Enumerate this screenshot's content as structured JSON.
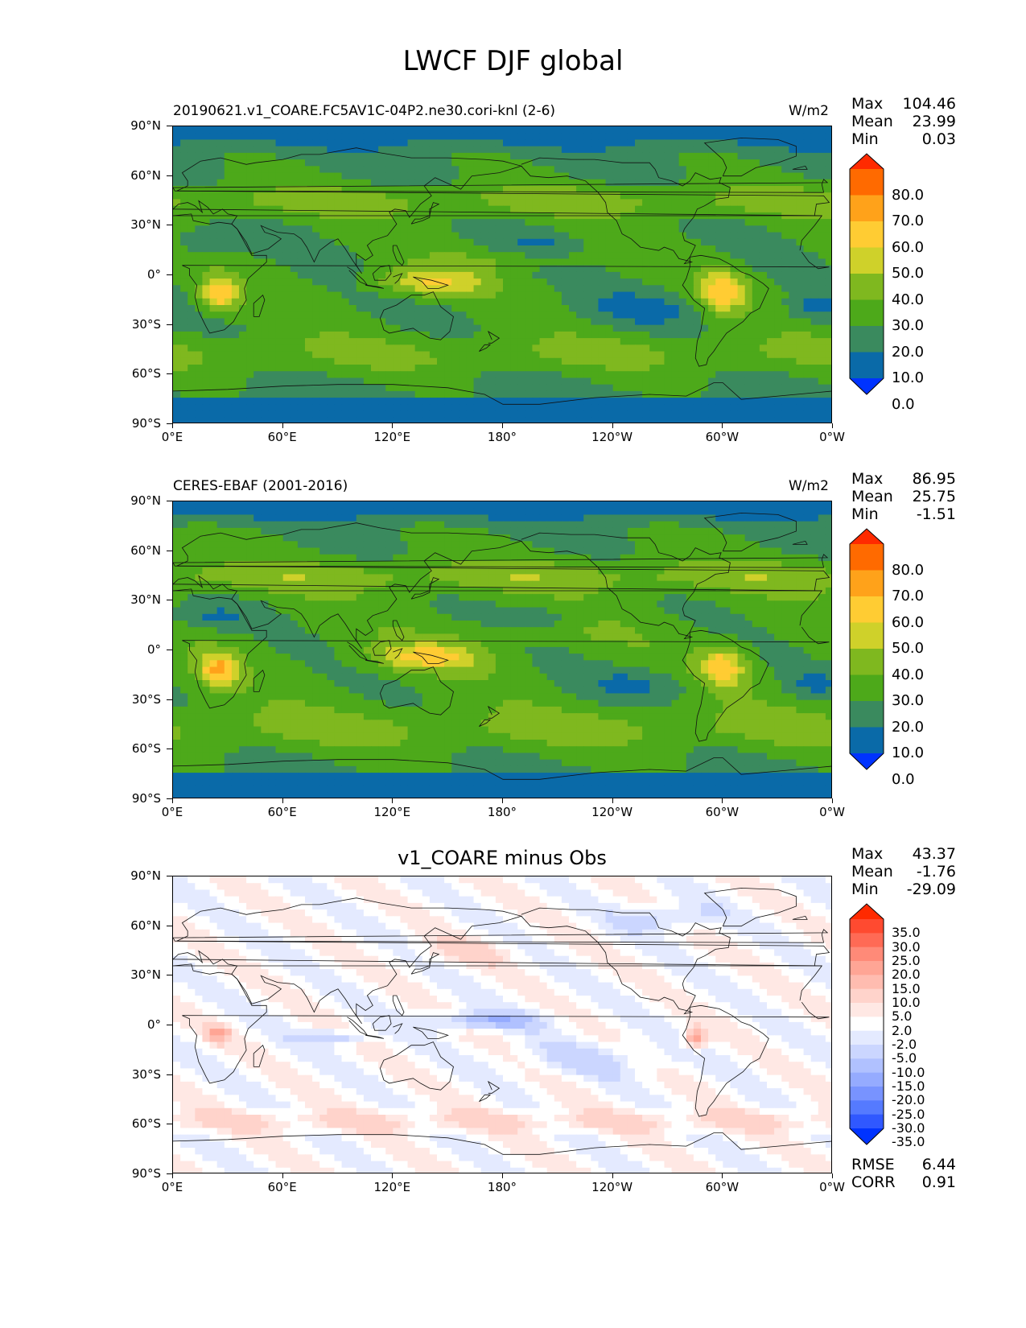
{
  "figure_title": "LWCF DJF global",
  "chart_data": [
    {
      "type": "heatmap",
      "title_left": "20190621.v1_COARE.FC5AV1C-04P2.ne30.cori-knl (2-6)",
      "title_right": "W/m2",
      "stats": {
        "max_label": "Max",
        "max": "104.46",
        "mean_label": "Mean",
        "mean": "23.99",
        "min_label": "Min",
        "min": "0.03"
      },
      "colorbar_levels": [
        "80.0",
        "70.0",
        "60.0",
        "50.0",
        "40.0",
        "30.0",
        "20.0",
        "10.0",
        "0.0"
      ],
      "colorbar_colors": [
        "#ff2a00",
        "#ff6a00",
        "#ffa21a",
        "#ffcc33",
        "#cfd12a",
        "#7fb81f",
        "#4da91a",
        "#3a8a5e",
        "#0a6aa8",
        "#0033ff"
      ],
      "xticks": [
        "0°E",
        "60°E",
        "120°E",
        "180°",
        "120°W",
        "60°W",
        "0°W"
      ],
      "yticks": [
        "90°N",
        "60°N",
        "30°N",
        "0°",
        "30°S",
        "60°S",
        "90°S"
      ]
    },
    {
      "type": "heatmap",
      "title_left": "CERES-EBAF (2001-2016)",
      "title_right": "W/m2",
      "stats": {
        "max_label": "Max",
        "max": "86.95",
        "mean_label": "Mean",
        "mean": "25.75",
        "min_label": "Min",
        "min": "-1.51"
      },
      "colorbar_levels": [
        "80.0",
        "70.0",
        "60.0",
        "50.0",
        "40.0",
        "30.0",
        "20.0",
        "10.0",
        "0.0"
      ],
      "colorbar_colors": [
        "#ff2a00",
        "#ff6a00",
        "#ffa21a",
        "#ffcc33",
        "#cfd12a",
        "#7fb81f",
        "#4da91a",
        "#3a8a5e",
        "#0a6aa8",
        "#0033ff"
      ],
      "xticks": [
        "0°E",
        "60°E",
        "120°E",
        "180°",
        "120°W",
        "60°W",
        "0°W"
      ],
      "yticks": [
        "90°N",
        "60°N",
        "30°N",
        "0°",
        "30°S",
        "60°S",
        "90°S"
      ]
    },
    {
      "type": "heatmap",
      "title_center": "v1_COARE minus Obs",
      "stats": {
        "max_label": "Max",
        "max": "43.37",
        "mean_label": "Mean",
        "mean": "-1.76",
        "min_label": "Min",
        "min": "-29.09"
      },
      "colorbar_levels": [
        "35.0",
        "30.0",
        "25.0",
        "20.0",
        "15.0",
        "10.0",
        "5.0",
        "2.0",
        "-2.0",
        "-5.0",
        "-10.0",
        "-15.0",
        "-20.0",
        "-25.0",
        "-30.0",
        "-35.0"
      ],
      "colorbar_colors": [
        "#ff2a00",
        "#ff4a30",
        "#ff6a55",
        "#ff8a78",
        "#ffa595",
        "#ffbcb0",
        "#ffd3cb",
        "#ffe8e4",
        "#ffffff",
        "#e4eaff",
        "#cbd6ff",
        "#b0c1ff",
        "#95abff",
        "#7893ff",
        "#557aff",
        "#3058ff",
        "#0033ff"
      ],
      "xticks": [
        "0°E",
        "60°E",
        "120°E",
        "180°",
        "120°W",
        "60°W",
        "0°W"
      ],
      "yticks": [
        "90°N",
        "60°N",
        "30°N",
        "0°",
        "30°S",
        "60°S",
        "90°S"
      ],
      "rmse_label": "RMSE",
      "rmse": "6.44",
      "corr_label": "CORR",
      "corr": "0.91"
    }
  ]
}
